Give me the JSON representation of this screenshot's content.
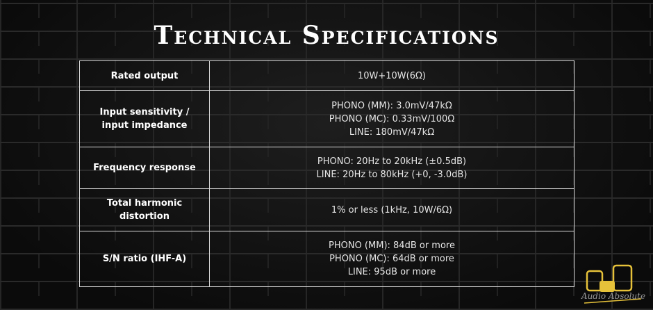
{
  "title": "Technical Specifications",
  "rows": [
    {
      "label": [
        "Rated output"
      ],
      "values": [
        "10W+10W(6Ω)"
      ]
    },
    {
      "label": [
        "Input sensitivity /",
        "input impedance"
      ],
      "values": [
        "PHONO (MM): 3.0mV/47kΩ",
        "PHONO (MC): 0.33mV/100Ω",
        "LINE: 180mV/47kΩ"
      ]
    },
    {
      "label": [
        "Frequency response"
      ],
      "values": [
        "PHONO: 20Hz to 20kHz (±0.5dB)",
        "LINE: 20Hz to 80kHz (+0, -3.0dB)"
      ]
    },
    {
      "label": [
        "Total harmonic",
        "distortion"
      ],
      "values": [
        "1% or less (1kHz, 10W/6Ω)"
      ]
    },
    {
      "label": [
        "S/N ratio (IHF-A)"
      ],
      "values": [
        "PHONO (MM): 84dB or more",
        "PHONO (MC): 64dB or more",
        "LINE: 95dB or more"
      ]
    }
  ],
  "logo": {
    "text": "Audio Absolute",
    "color": "#e6c23a"
  }
}
